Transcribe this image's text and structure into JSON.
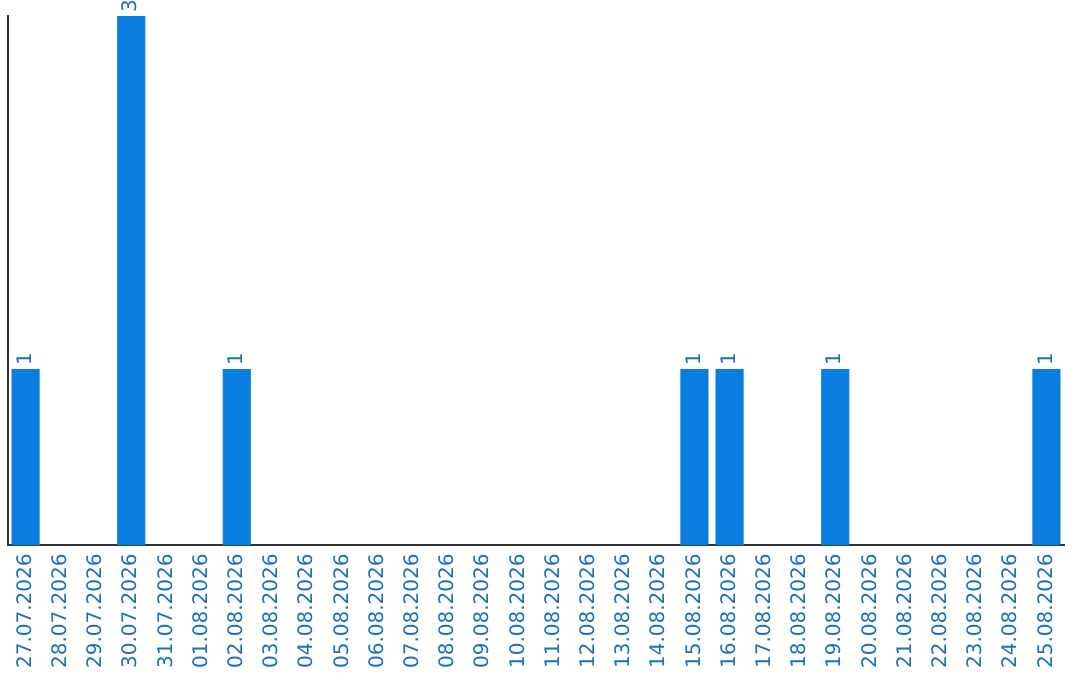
{
  "chart_data": {
    "type": "bar",
    "categories": [
      "27.07.2026",
      "28.07.2026",
      "29.07.2026",
      "30.07.2026",
      "31.07.2026",
      "01.08.2026",
      "02.08.2026",
      "03.08.2026",
      "04.08.2026",
      "05.08.2026",
      "06.08.2026",
      "07.08.2026",
      "08.08.2026",
      "09.08.2026",
      "10.08.2026",
      "11.08.2026",
      "12.08.2026",
      "13.08.2026",
      "14.08.2026",
      "15.08.2026",
      "16.08.2026",
      "17.08.2026",
      "18.08.2026",
      "19.08.2026",
      "20.08.2026",
      "21.08.2026",
      "22.08.2026",
      "23.08.2026",
      "24.08.2026",
      "25.08.2026"
    ],
    "values": [
      1,
      0,
      0,
      3,
      0,
      0,
      1,
      0,
      0,
      0,
      0,
      0,
      0,
      0,
      0,
      0,
      0,
      0,
      0,
      1,
      1,
      0,
      0,
      1,
      0,
      0,
      0,
      0,
      0,
      1
    ],
    "value_labels": [
      "1",
      null,
      null,
      "3",
      null,
      null,
      "1",
      null,
      null,
      null,
      null,
      null,
      null,
      null,
      null,
      null,
      null,
      null,
      null,
      "1",
      "1",
      null,
      null,
      "1",
      null,
      null,
      null,
      null,
      null,
      "1"
    ],
    "color": "#0a7de0",
    "grid": false,
    "tick_labels": "x"
  }
}
